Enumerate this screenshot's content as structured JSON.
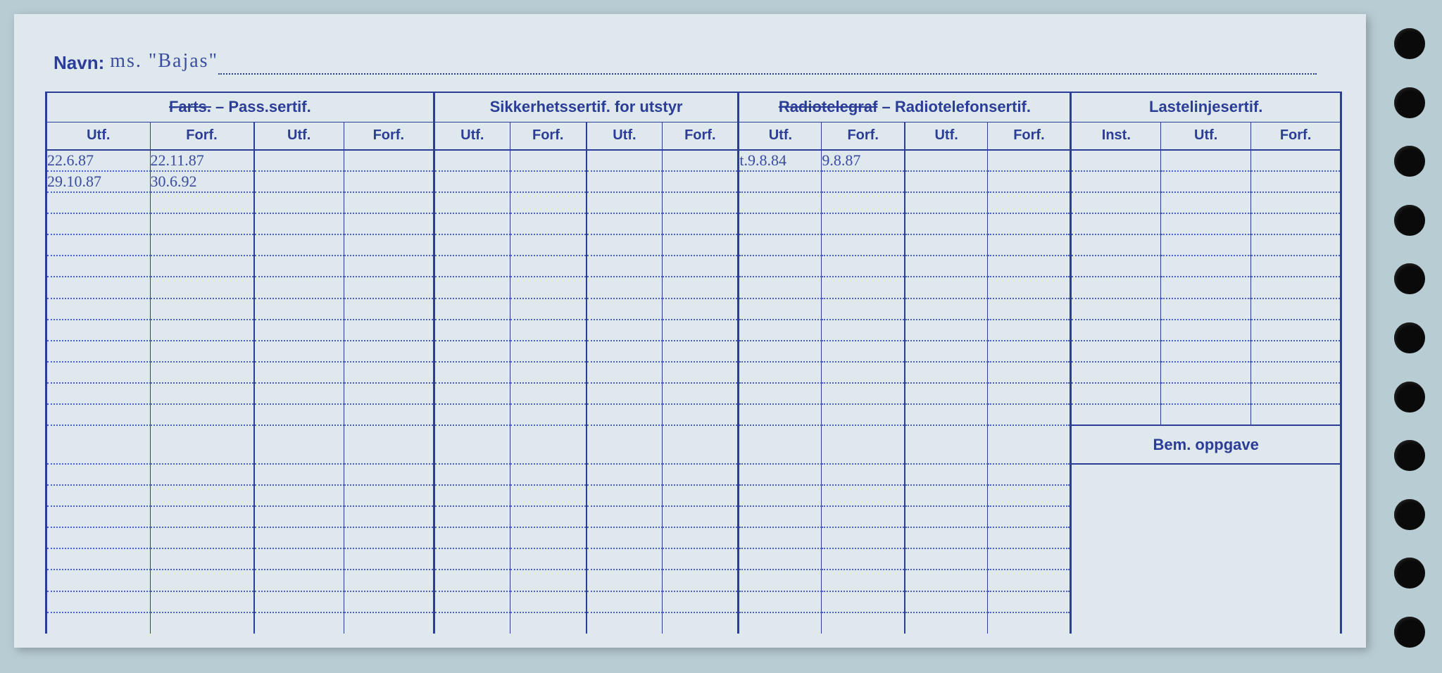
{
  "colors": {
    "page_bg": "#dfe9ed",
    "outer_bg": "#b8ccd4",
    "ink": "#2b3d96",
    "handwriting": "#3a4ba0",
    "dotted": "#4a60c0",
    "hole": "#0a0a0a"
  },
  "header": {
    "navn_label": "Navn:",
    "navn_value": "ms. \"Bajas\""
  },
  "groups": [
    {
      "title_pre": "Farts.",
      "title_strike": true,
      "title_post": " – Pass.sertif.",
      "cols": [
        "Utf.",
        "Forf.",
        "Utf.",
        "Forf."
      ]
    },
    {
      "title_pre": "Sikkerhetssertif. for utstyr",
      "title_strike": false,
      "title_post": "",
      "cols": [
        "Utf.",
        "Forf.",
        "Utf.",
        "Forf."
      ]
    },
    {
      "title_pre": "Radiotelegraf",
      "title_strike": true,
      "title_post": " – Radiotelefonsertif.",
      "cols": [
        "Utf.",
        "Forf.",
        "Utf.",
        "Forf."
      ]
    },
    {
      "title_pre": "Lastelinjesertif.",
      "title_strike": false,
      "title_post": "",
      "cols": [
        "Inst.",
        "Utf.",
        "Forf."
      ]
    }
  ],
  "rows": [
    {
      "c": [
        "22.6.87",
        "22.11.87",
        "",
        "",
        "",
        "",
        "",
        "",
        "t.9.8.84",
        "9.8.87",
        "",
        "",
        "",
        "",
        ""
      ]
    },
    {
      "c": [
        "29.10.87",
        "30.6.92",
        "",
        "",
        "",
        "",
        "",
        "",
        "",
        "",
        "",
        "",
        "",
        "",
        ""
      ]
    },
    {
      "c": [
        "",
        "",
        "",
        "",
        "",
        "",
        "",
        "",
        "",
        "",
        "",
        "",
        "",
        "",
        ""
      ]
    },
    {
      "c": [
        "",
        "",
        "",
        "",
        "",
        "",
        "",
        "",
        "",
        "",
        "",
        "",
        "",
        "",
        ""
      ]
    },
    {
      "c": [
        "",
        "",
        "",
        "",
        "",
        "",
        "",
        "",
        "",
        "",
        "",
        "",
        "",
        "",
        ""
      ]
    },
    {
      "c": [
        "",
        "",
        "",
        "",
        "",
        "",
        "",
        "",
        "",
        "",
        "",
        "",
        "",
        "",
        ""
      ]
    },
    {
      "c": [
        "",
        "",
        "",
        "",
        "",
        "",
        "",
        "",
        "",
        "",
        "",
        "",
        "",
        "",
        ""
      ]
    },
    {
      "c": [
        "",
        "",
        "",
        "",
        "",
        "",
        "",
        "",
        "",
        "",
        "",
        "",
        "",
        "",
        ""
      ]
    },
    {
      "c": [
        "",
        "",
        "",
        "",
        "",
        "",
        "",
        "",
        "",
        "",
        "",
        "",
        "",
        "",
        ""
      ]
    },
    {
      "c": [
        "",
        "",
        "",
        "",
        "",
        "",
        "",
        "",
        "",
        "",
        "",
        "",
        "",
        "",
        ""
      ]
    },
    {
      "c": [
        "",
        "",
        "",
        "",
        "",
        "",
        "",
        "",
        "",
        "",
        "",
        "",
        "",
        "",
        ""
      ]
    },
    {
      "c": [
        "",
        "",
        "",
        "",
        "",
        "",
        "",
        "",
        "",
        "",
        "",
        "",
        "",
        "",
        ""
      ]
    },
    {
      "c": [
        "",
        "",
        "",
        "",
        "",
        "",
        "",
        "",
        "",
        "",
        "",
        "",
        "",
        "",
        ""
      ]
    }
  ],
  "bem_label": "Bem. oppgave",
  "bem_at_row": 13,
  "total_rows": 22,
  "hole_count": 11
}
